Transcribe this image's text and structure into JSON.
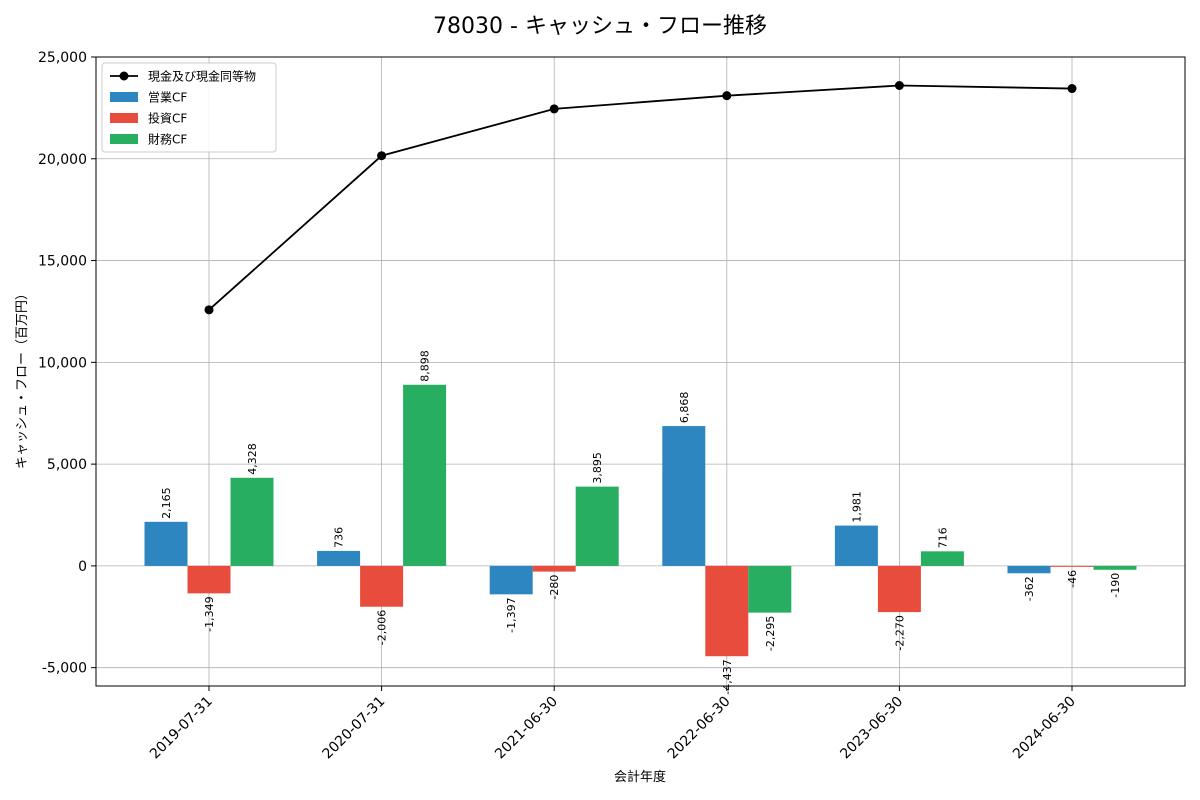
{
  "chart_data": {
    "type": "bar",
    "title": "78030 - キャッシュ・フロー推移",
    "xlabel": "会計年度",
    "ylabel": "キャッシュ・フロー（百万円）",
    "categories": [
      "2019-07-31",
      "2020-07-31",
      "2021-06-30",
      "2022-06-30",
      "2023-06-30",
      "2024-06-30"
    ],
    "ylim": [
      -5900,
      25000
    ],
    "yticks": [
      -5000,
      0,
      5000,
      10000,
      15000,
      20000,
      25000
    ],
    "ytick_labels": [
      "-5,000",
      "0",
      "5,000",
      "10,000",
      "15,000",
      "20,000",
      "25,000"
    ],
    "grid": true,
    "legend_position": "top-left",
    "series": [
      {
        "name": "営業CF",
        "kind": "bar",
        "color": "#2e86c1",
        "values": [
          2165,
          736,
          -1397,
          6868,
          1981,
          -362
        ],
        "labels": [
          "2,165",
          "736",
          "-1,397",
          "6,868",
          "1,981",
          "-362"
        ]
      },
      {
        "name": "投資CF",
        "kind": "bar",
        "color": "#e74c3c",
        "values": [
          -1349,
          -2006,
          -280,
          -4437,
          -2270,
          -46
        ],
        "labels": [
          "-1,349",
          "-2,006",
          "-280",
          "-4,437",
          "-2,270",
          "-46"
        ]
      },
      {
        "name": "財務CF",
        "kind": "bar",
        "color": "#27ae60",
        "values": [
          4328,
          8898,
          3895,
          -2295,
          716,
          -190
        ],
        "labels": [
          "4,328",
          "8,898",
          "3,895",
          "-2,295",
          "716",
          "-190"
        ]
      },
      {
        "name": "現金及び現金同等物",
        "kind": "line",
        "color": "#000000",
        "values": [
          12580,
          20150,
          22450,
          23100,
          23600,
          23450
        ]
      }
    ]
  }
}
